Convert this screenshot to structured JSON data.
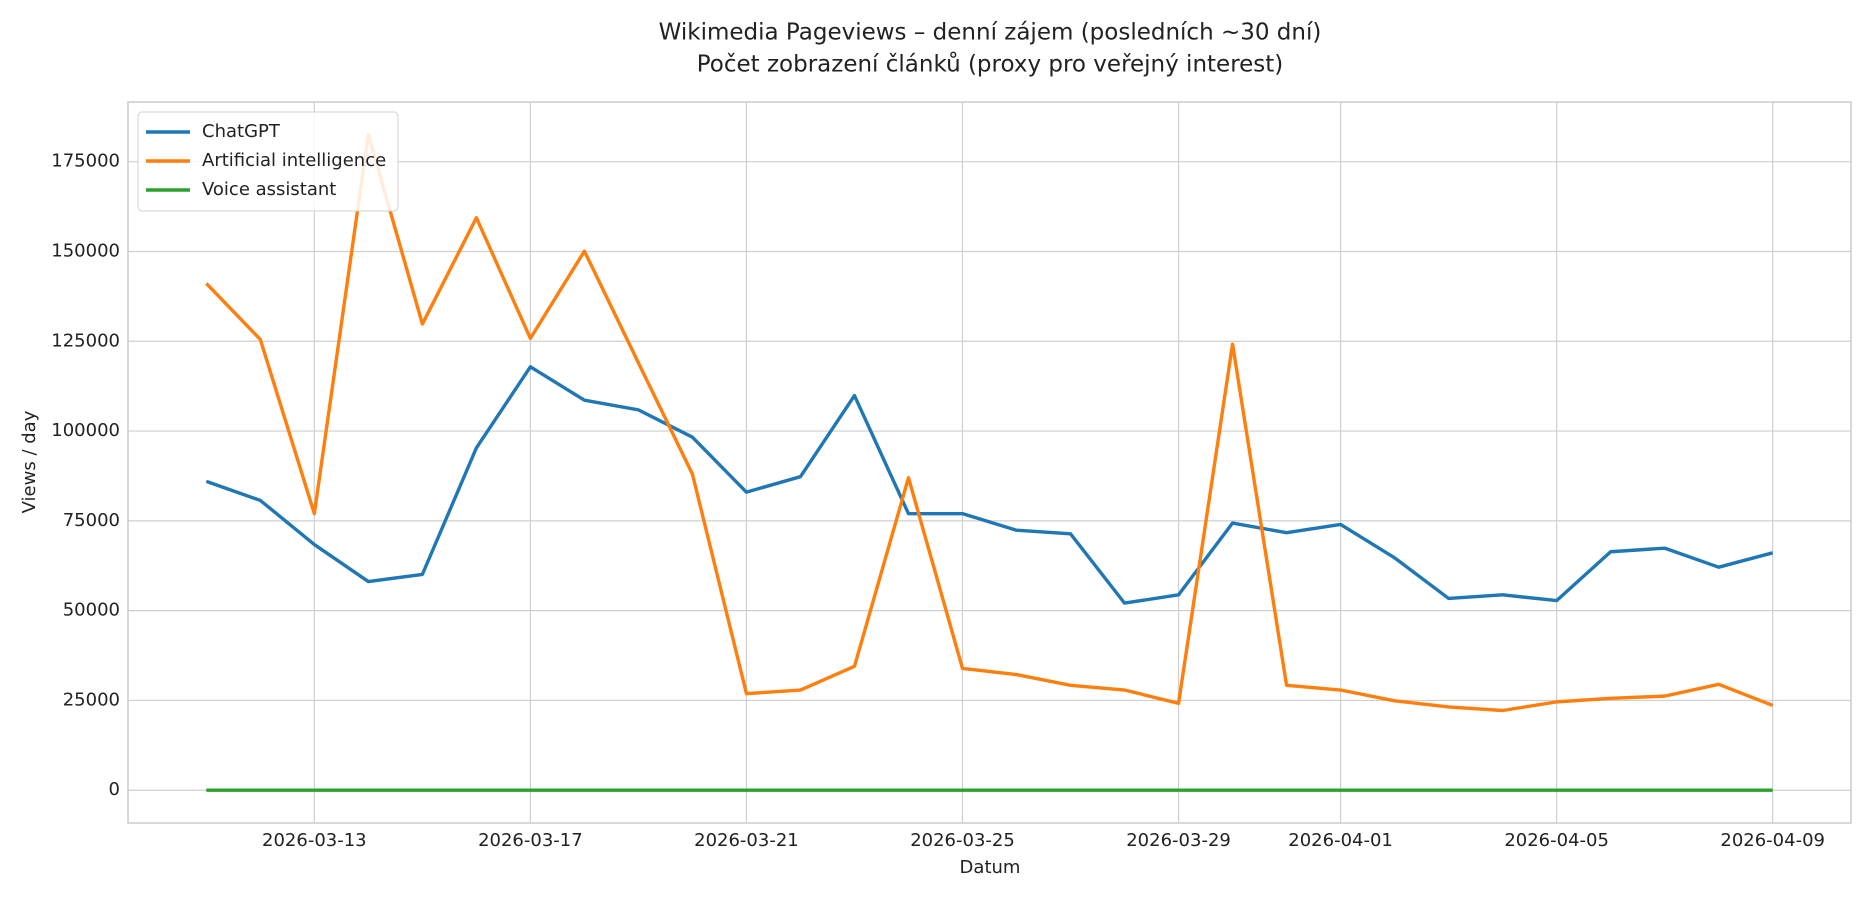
{
  "chart_data": {
    "type": "line",
    "title": "Wikimedia Pageviews – denní zájem (posledních ~30 dní)",
    "subtitle": "Počet zobrazení článků (proxy pro veřejný interest)",
    "x_label": "Datum",
    "y_label": "Views / day",
    "x": [
      "2026-03-11",
      "2026-03-12",
      "2026-03-13",
      "2026-03-14",
      "2026-03-15",
      "2026-03-16",
      "2026-03-17",
      "2026-03-18",
      "2026-03-19",
      "2026-03-20",
      "2026-03-21",
      "2026-03-22",
      "2026-03-23",
      "2026-03-24",
      "2026-03-25",
      "2026-03-26",
      "2026-03-27",
      "2026-03-28",
      "2026-03-29",
      "2026-03-30",
      "2026-03-31",
      "2026-04-01",
      "2026-04-02",
      "2026-04-03",
      "2026-04-04",
      "2026-04-05",
      "2026-04-06",
      "2026-04-07",
      "2026-04-08",
      "2026-04-09"
    ],
    "series": [
      {
        "name": "ChatGPT",
        "color": "#1f77b4",
        "values": [
          86000,
          80700,
          68400,
          58100,
          60100,
          95300,
          117900,
          108600,
          105900,
          98300,
          83000,
          87300,
          109900,
          77000,
          77000,
          72400,
          71400,
          52100,
          54400,
          74400,
          71700,
          74000,
          64700,
          53400,
          54400,
          52800,
          66400,
          67400,
          62100,
          66100
        ]
      },
      {
        "name": "Artificial intelligence",
        "color": "#ff7f0e",
        "values": [
          141100,
          125500,
          77000,
          182600,
          129800,
          159400,
          125800,
          150100,
          119000,
          88000,
          26900,
          27900,
          34500,
          87000,
          33900,
          32200,
          29200,
          27900,
          24200,
          124200,
          29200,
          27900,
          24900,
          23200,
          22200,
          24600,
          25600,
          26200,
          29500,
          23600
        ]
      },
      {
        "name": "Voice assistant",
        "color": "#2ca02c",
        "values": [
          0,
          0,
          0,
          0,
          0,
          0,
          0,
          0,
          0,
          0,
          0,
          0,
          0,
          0,
          0,
          0,
          0,
          0,
          0,
          0,
          0,
          0,
          0,
          0,
          0,
          0,
          0,
          0,
          0,
          0
        ]
      }
    ],
    "xlim": [
      "2026-03-09T13:12Z",
      "2026-04-10T10:48Z"
    ],
    "xticks": [
      "2026-03-13",
      "2026-03-17",
      "2026-03-21",
      "2026-03-25",
      "2026-03-29",
      "2026-04-01",
      "2026-04-05",
      "2026-04-09"
    ],
    "ylim": [
      -9125,
      191625
    ],
    "yticks": [
      0,
      25000,
      50000,
      75000,
      100000,
      125000,
      150000,
      175000
    ],
    "grid": true,
    "legend": "upper left"
  }
}
